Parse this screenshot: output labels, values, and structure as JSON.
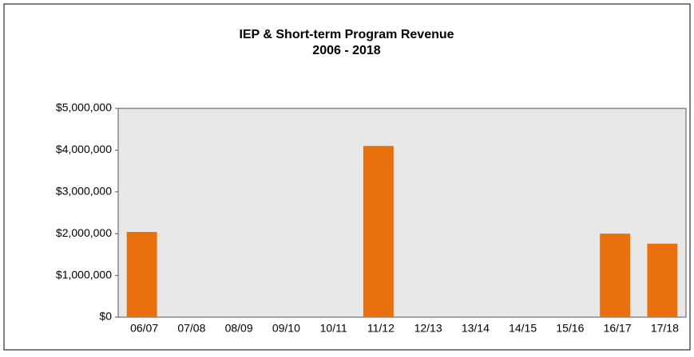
{
  "chart_data": {
    "type": "bar",
    "title": "IEP & Short-term Program Revenue",
    "subtitle": "2006 - 2018",
    "categories": [
      "06/07",
      "07/08",
      "08/09",
      "09/10",
      "10/11",
      "11/12",
      "12/13",
      "13/14",
      "14/15",
      "15/16",
      "16/17",
      "17/18"
    ],
    "values": [
      2040000,
      0,
      0,
      0,
      0,
      4100000,
      0,
      0,
      0,
      0,
      2000000,
      1760000
    ],
    "color": "#e8700f",
    "ylim": [
      0,
      5000000
    ],
    "yticks": [
      {
        "value": 0,
        "label": "$0"
      },
      {
        "value": 1000000,
        "label": "$1,000,000"
      },
      {
        "value": 2000000,
        "label": "$2,000,000"
      },
      {
        "value": 3000000,
        "label": "$3,000,000"
      },
      {
        "value": 4000000,
        "label": "$4,000,000"
      },
      {
        "value": 5000000,
        "label": "$5,000,000"
      }
    ],
    "grid": false
  }
}
